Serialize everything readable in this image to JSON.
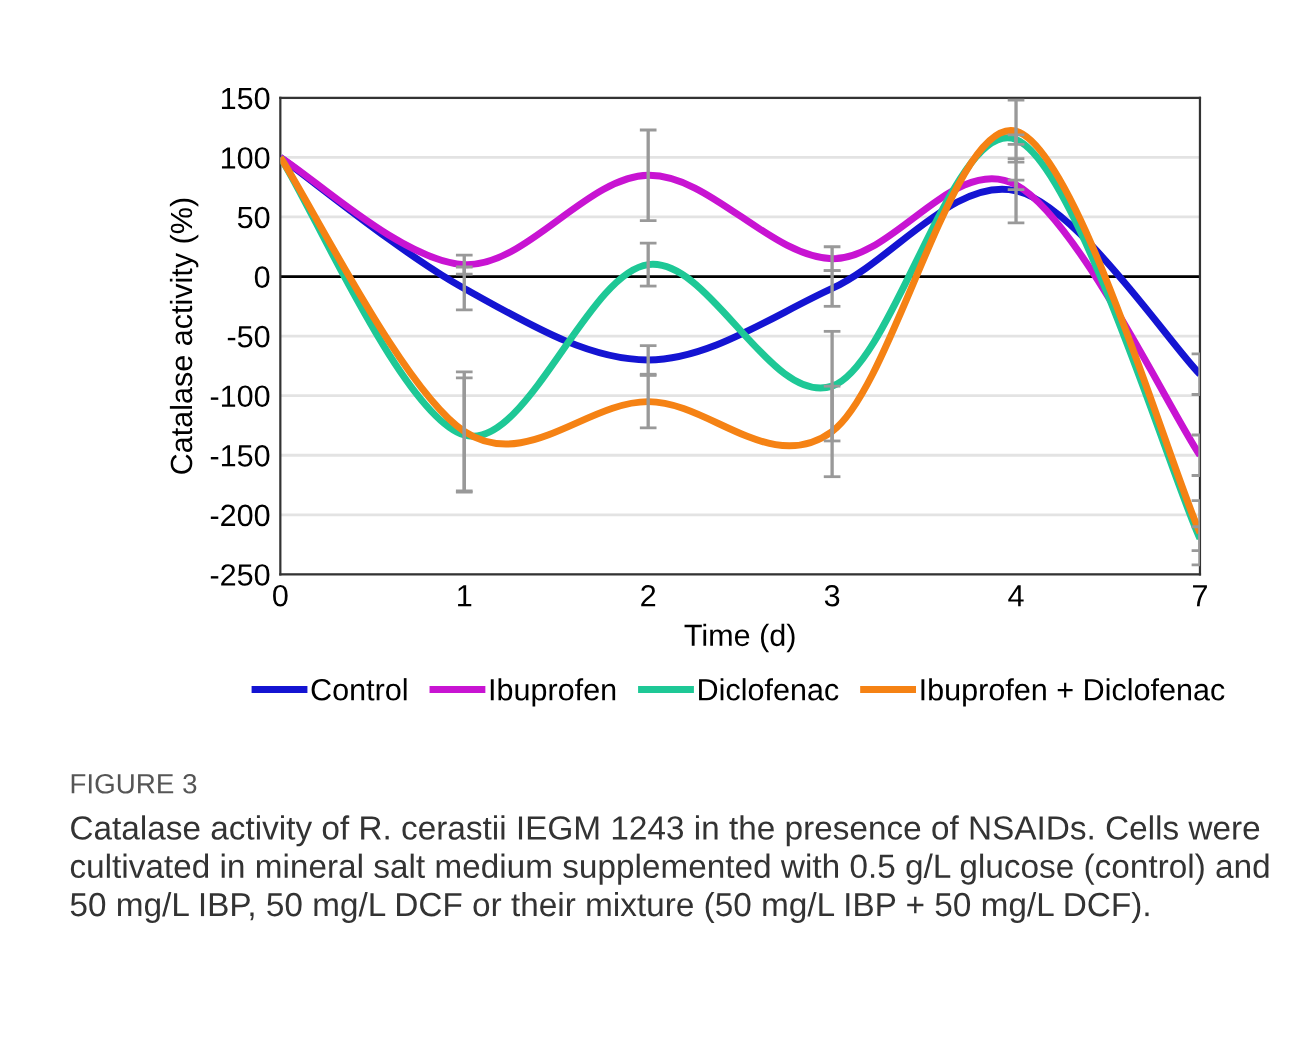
{
  "chart_data": {
    "type": "line",
    "xlabel": "Time (d)",
    "ylabel": "Catalase activity (%)",
    "categories": [
      "0",
      "1",
      "2",
      "3",
      "4",
      "7"
    ],
    "series": [
      {
        "name": "Control",
        "color": "#1414d2",
        "values": [
          100,
          -10,
          -70,
          -10,
          72,
          -82
        ],
        "errors": [
          null,
          18,
          12,
          15,
          27,
          17
        ]
      },
      {
        "name": "Ibuprofen",
        "color": "#c814d2",
        "values": [
          100,
          10,
          85,
          15,
          77,
          -150
        ],
        "errors": [
          null,
          8,
          38,
          10,
          4,
          17
        ]
      },
      {
        "name": "Diclofenac",
        "color": "#1ec896",
        "values": [
          100,
          -133,
          10,
          -92,
          115,
          -220
        ],
        "errors": [
          null,
          48,
          18,
          46,
          4,
          10
        ]
      },
      {
        "name": "Ibuprofen + Diclofenac",
        "color": "#f58214",
        "values": [
          100,
          -130,
          -105,
          -130,
          122,
          -215
        ],
        "errors": [
          null,
          50,
          22,
          38,
          26,
          27
        ]
      }
    ],
    "ylim": [
      -250,
      150
    ],
    "yticks": [
      -250,
      -200,
      -150,
      -100,
      -50,
      0,
      50,
      100,
      150
    ],
    "grid": "y",
    "legend": "bottom",
    "marker": "none",
    "line_style": "solid",
    "ref_lines": [
      {
        "axis": "y",
        "value": 0,
        "color": "#000000"
      }
    ],
    "annotations": [
      "FIGURE 3",
      "Catalase activity of R. cerastii IEGM 1243 in the presence of NSAIDs. Cells were cultivated in mineral salt medium supplemented with 0.5 g/L glucose (control) and 50 mg/L IBP, 50 mg/L DCF or their mixture (50 mg/L IBP + 50 mg/L DCF)."
    ]
  }
}
